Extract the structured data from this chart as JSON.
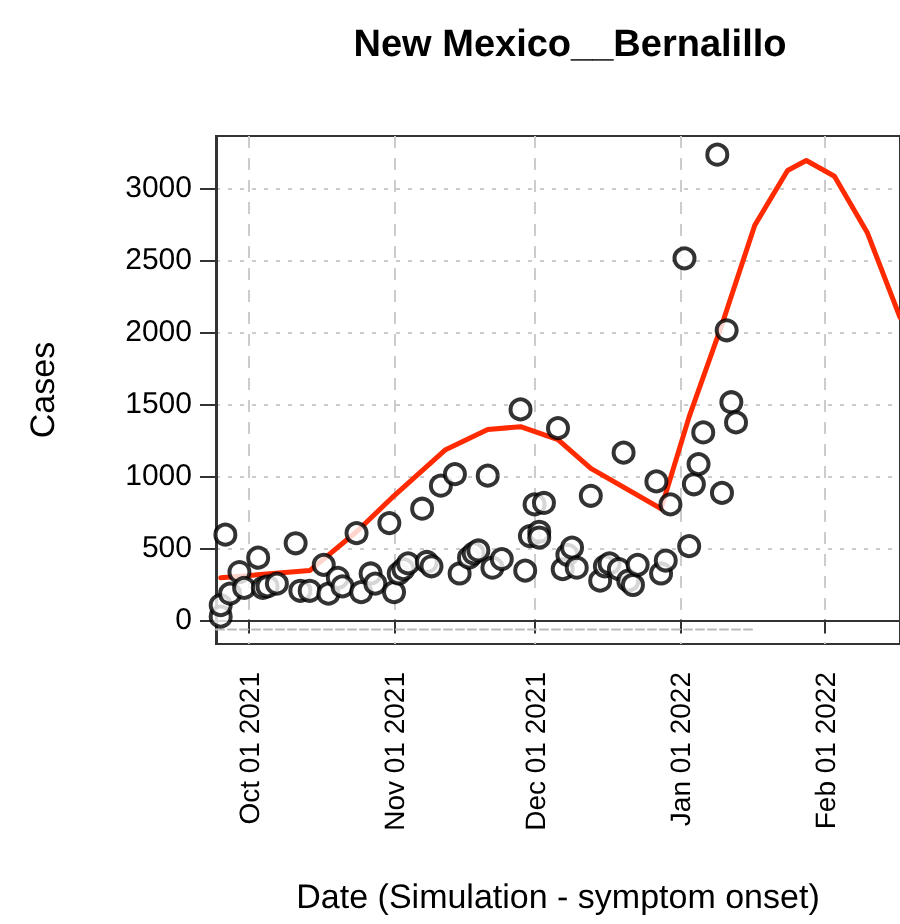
{
  "chart_data": {
    "type": "scatter",
    "title": "New Mexico__Bernalillo",
    "xlabel": "Date (Simulation - symptom onset)",
    "ylabel": "Cases",
    "xlim": [
      "2021-09-24",
      "2022-02-17"
    ],
    "xticks": [
      {
        "value": "2021-10-01",
        "label": "Oct 01 2021"
      },
      {
        "value": "2021-11-01",
        "label": "Nov 01 2021"
      },
      {
        "value": "2021-12-01",
        "label": "Dec 01 2021"
      },
      {
        "value": "2022-01-01",
        "label": "Jan 01 2022"
      },
      {
        "value": "2022-02-01",
        "label": "Feb 01 2022"
      }
    ],
    "ylim": [
      -170,
      3360
    ],
    "yticks": [
      0,
      500,
      1000,
      1500,
      2000,
      2500,
      3000
    ],
    "grid": true,
    "series": [
      {
        "marker": "circle",
        "color": "#000000",
        "x": [
          "2021-09-25",
          "2021-09-25",
          "2021-09-26",
          "2021-09-27",
          "2021-09-29",
          "2021-09-30",
          "2021-10-03",
          "2021-10-04",
          "2021-10-05",
          "2021-10-07",
          "2021-10-11",
          "2021-10-12",
          "2021-10-14",
          "2021-10-17",
          "2021-10-18",
          "2021-10-20",
          "2021-10-21",
          "2021-10-24",
          "2021-10-25",
          "2021-10-27",
          "2021-10-28",
          "2021-10-31",
          "2021-11-01",
          "2021-11-02",
          "2021-11-03",
          "2021-11-04",
          "2021-11-07",
          "2021-11-08",
          "2021-11-09",
          "2021-11-11",
          "2021-11-14",
          "2021-11-15",
          "2021-11-17",
          "2021-11-18",
          "2021-11-19",
          "2021-11-21",
          "2021-11-22",
          "2021-11-24",
          "2021-11-28",
          "2021-11-29",
          "2021-11-30",
          "2021-12-01",
          "2021-12-02",
          "2021-12-02",
          "2021-12-03",
          "2021-12-06",
          "2021-12-07",
          "2021-12-08",
          "2021-12-09",
          "2021-12-10",
          "2021-12-13",
          "2021-12-15",
          "2021-12-16",
          "2021-12-17",
          "2021-12-19",
          "2021-12-20",
          "2021-12-21",
          "2021-12-22",
          "2021-12-23",
          "2021-12-27",
          "2021-12-28",
          "2021-12-29",
          "2021-12-30",
          "2022-01-02",
          "2022-01-03",
          "2022-01-04",
          "2022-01-05",
          "2022-01-06",
          "2022-01-09",
          "2022-01-10",
          "2022-01-11",
          "2022-01-12",
          "2022-01-13"
        ],
        "values": [
          20,
          100,
          590,
          180,
          330,
          220,
          430,
          220,
          230,
          250,
          530,
          200,
          200,
          380,
          180,
          290,
          230,
          600,
          190,
          320,
          250,
          670,
          190,
          320,
          350,
          390,
          770,
          400,
          370,
          930,
          1010,
          320,
          430,
          460,
          480,
          1000,
          360,
          420,
          1460,
          340,
          580,
          800,
          610,
          570,
          810,
          1330,
          350,
          450,
          500,
          360,
          860,
          270,
          370,
          390,
          350,
          1160,
          270,
          240,
          380,
          960,
          320,
          410,
          800,
          2510,
          510,
          940,
          1080,
          1300,
          3230,
          880,
          2010,
          1510,
          1370
        ]
      },
      {
        "type": "line",
        "marker": "none",
        "line_style": "solid",
        "color": "#ff2a00",
        "x": [
          "2021-09-25",
          "2021-10-14",
          "2021-10-24",
          "2021-11-01",
          "2021-11-12",
          "2021-11-21",
          "2021-11-28",
          "2021-12-06",
          "2021-12-13",
          "2021-12-28",
          "2022-01-03",
          "2022-01-10",
          "2022-01-17",
          "2022-01-24",
          "2022-01-28",
          "2022-02-03",
          "2022-02-10",
          "2022-02-17"
        ],
        "values": [
          290,
          340,
          610,
          860,
          1180,
          1320,
          1340,
          1250,
          1050,
          770,
          1410,
          2050,
          2740,
          3120,
          3190,
          3080,
          2690,
          2100
        ]
      },
      {
        "type": "line",
        "marker": "none",
        "line_style": "dashed",
        "color": "#bbbbbb",
        "x": [
          "2021-09-24",
          "2022-01-17"
        ],
        "values": [
          -70,
          -70
        ]
      }
    ]
  }
}
